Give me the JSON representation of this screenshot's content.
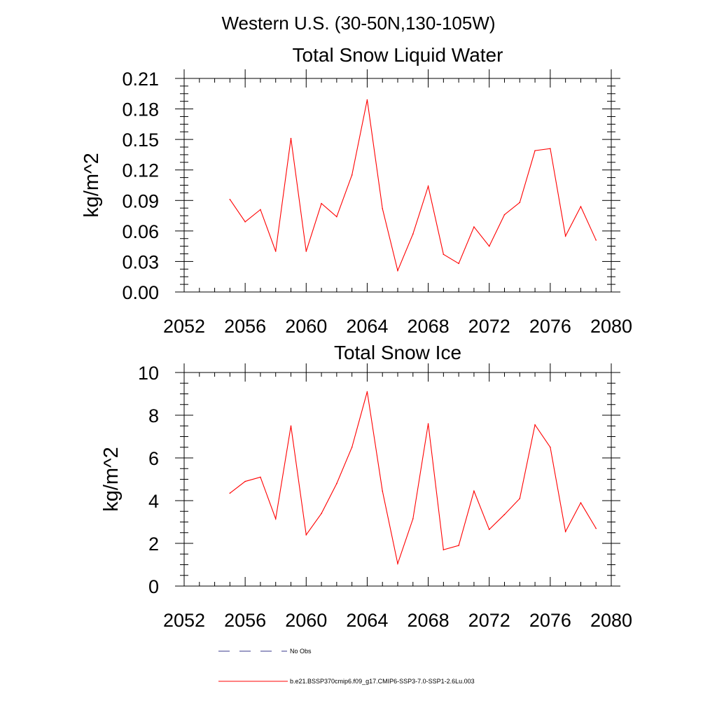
{
  "figure_title": "Western U.S. (30-50N,130-105W)",
  "chart_data": [
    {
      "type": "line",
      "title": "Total Snow Liquid Water",
      "xlabel": "",
      "ylabel": "kg/m^2",
      "xlim": [
        2052,
        2080
      ],
      "ylim": [
        0,
        0.21
      ],
      "x_ticks": [
        2052,
        2056,
        2060,
        2064,
        2068,
        2072,
        2076,
        2080
      ],
      "x_tick_labels": [
        "2052",
        "2056",
        "2060",
        "2064",
        "2068",
        "2072",
        "2076",
        "2080"
      ],
      "y_ticks": [
        0,
        0.03,
        0.06,
        0.09,
        0.12,
        0.15,
        0.18,
        0.21
      ],
      "y_tick_labels": [
        "0.00",
        "0.03",
        "0.06",
        "0.09",
        "0.12",
        "0.15",
        "0.18",
        "0.21"
      ],
      "grid": false,
      "x": [
        2055,
        2056,
        2057,
        2058,
        2059,
        2060,
        2061,
        2062,
        2063,
        2064,
        2065,
        2066,
        2067,
        2068,
        2069,
        2070,
        2071,
        2072,
        2073,
        2074,
        2075,
        2076,
        2077,
        2078,
        2079
      ],
      "series": [
        {
          "name": "b.e21.BSSP370cmip6.f09_g17.CMIP6-SSP3-7.0-SSP1-2.6Lu.003",
          "color": "#ff0000",
          "values": [
            0.091,
            0.069,
            0.081,
            0.04,
            0.151,
            0.04,
            0.087,
            0.074,
            0.115,
            0.189,
            0.082,
            0.021,
            0.057,
            0.104,
            0.037,
            0.028,
            0.064,
            0.045,
            0.076,
            0.088,
            0.139,
            0.141,
            0.055,
            0.084,
            0.051
          ]
        }
      ]
    },
    {
      "type": "line",
      "title": "Total Snow Ice",
      "xlabel": "",
      "ylabel": "kg/m^2",
      "xlim": [
        2052,
        2080
      ],
      "ylim": [
        0,
        10
      ],
      "x_ticks": [
        2052,
        2056,
        2060,
        2064,
        2068,
        2072,
        2076,
        2080
      ],
      "x_tick_labels": [
        "2052",
        "2056",
        "2060",
        "2064",
        "2068",
        "2072",
        "2076",
        "2080"
      ],
      "y_ticks": [
        0,
        2,
        4,
        6,
        8,
        10
      ],
      "y_tick_labels": [
        "0",
        "2",
        "4",
        "6",
        "8",
        "10"
      ],
      "grid": false,
      "x": [
        2055,
        2056,
        2057,
        2058,
        2059,
        2060,
        2061,
        2062,
        2063,
        2064,
        2065,
        2066,
        2067,
        2068,
        2069,
        2070,
        2071,
        2072,
        2073,
        2074,
        2075,
        2076,
        2077,
        2078,
        2079
      ],
      "series": [
        {
          "name": "b.e21.BSSP370cmip6.f09_g17.CMIP6-SSP3-7.0-SSP1-2.6Lu.003",
          "color": "#ff0000",
          "values": [
            4.35,
            4.9,
            5.1,
            3.15,
            7.5,
            2.4,
            3.4,
            4.8,
            6.5,
            9.1,
            4.45,
            1.05,
            3.15,
            7.6,
            1.7,
            1.9,
            4.45,
            2.65,
            3.35,
            4.1,
            7.55,
            6.5,
            2.55,
            3.9,
            2.7
          ]
        }
      ]
    }
  ],
  "legend": {
    "placement": "bottom",
    "entries": [
      {
        "label": "No Obs",
        "style": "dashed",
        "color": "#3a3a8c"
      },
      {
        "label": "b.e21.BSSP370cmip6.f09_g17.CMIP6-SSP3-7.0-SSP1-2.6Lu.003",
        "style": "solid",
        "color": "#ff0000"
      }
    ]
  }
}
